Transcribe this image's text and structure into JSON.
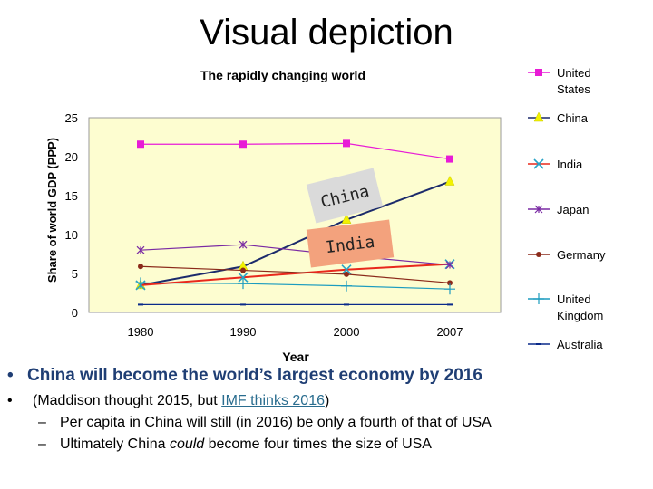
{
  "slide_title": "Visual depiction",
  "chart_data": {
    "type": "line",
    "title": "The rapidly changing world",
    "xlabel": "Year",
    "ylabel": "Share of world GDP (PPP)",
    "categories": [
      "1980",
      "1990",
      "2000",
      "2007"
    ],
    "ylim": [
      0,
      25
    ],
    "yticks": [
      0,
      5,
      10,
      15,
      20,
      25
    ],
    "series": [
      {
        "name": "United States",
        "label_lines": [
          "United",
          "States"
        ],
        "color": "#e81bd6",
        "marker": "square",
        "values": [
          21.6,
          21.6,
          21.7,
          19.7
        ]
      },
      {
        "name": "China",
        "label_lines": [
          "China"
        ],
        "color": "#1b2a6b",
        "marker": "triangle",
        "values": [
          3.5,
          5.9,
          11.9,
          16.8
        ]
      },
      {
        "name": "India",
        "label_lines": [
          "India"
        ],
        "color": "#e8281c",
        "marker": "x",
        "values": [
          3.5,
          4.5,
          5.5,
          6.2
        ]
      },
      {
        "name": "Japan",
        "label_lines": [
          "Japan"
        ],
        "color": "#7a2aa3",
        "marker": "star",
        "values": [
          8.0,
          8.7,
          7.3,
          6.1
        ]
      },
      {
        "name": "Germany",
        "label_lines": [
          "Germany"
        ],
        "color": "#8b2a1a",
        "marker": "circle",
        "values": [
          5.9,
          5.4,
          4.9,
          3.8
        ]
      },
      {
        "name": "United Kingdom",
        "label_lines": [
          "United",
          "Kingdom"
        ],
        "color": "#1c9cbf",
        "marker": "plus",
        "values": [
          3.8,
          3.7,
          3.4,
          3.0
        ]
      },
      {
        "name": "Australia",
        "label_lines": [
          "Australia"
        ],
        "color": "#0a2a8a",
        "marker": "dash",
        "values": [
          1.0,
          1.0,
          1.0,
          1.0
        ]
      }
    ],
    "annotations": [
      {
        "text": "China",
        "series": "China"
      },
      {
        "text": "India",
        "series": "India"
      }
    ]
  },
  "bullets": {
    "main": "China will become the world’s largest economy by 2016",
    "second_pre": "(Maddison thought 2015, but ",
    "second_link": "IMF thinks 2016",
    "second_post": ")",
    "sub1": "Per capita in China will still (in 2016) be only a fourth of that of USA",
    "sub2_pre": "Ultimately China ",
    "sub2_em": "could",
    "sub2_post": " become four times the size of USA"
  }
}
